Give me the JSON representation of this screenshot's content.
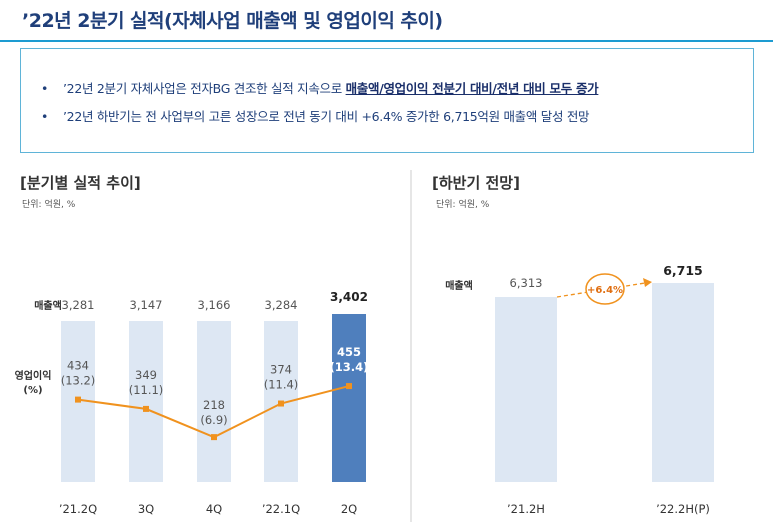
{
  "title": "’22년 2분기 실적(자체사업 매출액 및 영업이익 추이)",
  "summary": {
    "items": [
      {
        "prefix": "’22년 2분기 자체사업은 전자BG 견조한 실적 지속으로 ",
        "highlight": "매출액/영업이익 전분기 대비/전년 대비 모두 증가"
      },
      {
        "prefix": "’22년 하반기는 전 사업부의 고른 성장으로 전년 동기 대비 +6.4% 증가한 6,715억원 매출액 달성 전망",
        "highlight": ""
      }
    ]
  },
  "colors": {
    "title": "#1f3f7a",
    "bar_light": "#dde7f3",
    "bar_highlight": "#4f7fbd",
    "line": "#f0921e",
    "box_border": "#5fb4d8"
  },
  "chart_data": [
    {
      "type": "bar",
      "section_title": "[분기별 실적 추이]",
      "unit": "단위: 억원, %",
      "row_labels": {
        "revenue": "매출액",
        "profit": "영업이익",
        "profit_pct": "(%)"
      },
      "categories": [
        "’21.2Q",
        "3Q",
        "4Q",
        "’22.1Q",
        "2Q"
      ],
      "series": [
        {
          "name": "매출액",
          "type": "bar",
          "values": [
            3281,
            3147,
            3166,
            3284,
            3402
          ],
          "value_labels": [
            "3,281",
            "3,147",
            "3,166",
            "3,284",
            "3,402"
          ]
        },
        {
          "name": "영업이익",
          "type": "line",
          "values": [
            434,
            349,
            218,
            374,
            455
          ],
          "margin_pct": [
            13.2,
            11.1,
            6.9,
            11.4,
            13.4
          ],
          "value_labels": [
            "434",
            "349",
            "218",
            "374",
            "455"
          ],
          "pct_labels": [
            "(13.2)",
            "(11.1)",
            "(6.9)",
            "(11.4)",
            "(13.4)"
          ]
        }
      ],
      "highlight_index": 4
    },
    {
      "type": "bar",
      "section_title": "[하반기 전망]",
      "unit": "단위: 억원, %",
      "row_labels": {
        "revenue": "매출액"
      },
      "categories": [
        "’21.2H",
        "’22.2H(P)"
      ],
      "series": [
        {
          "name": "매출액",
          "values": [
            6313,
            6715
          ],
          "value_labels": [
            "6,313",
            "6,715"
          ]
        }
      ],
      "growth_label": "+6.4%",
      "highlight_index": 1
    }
  ]
}
